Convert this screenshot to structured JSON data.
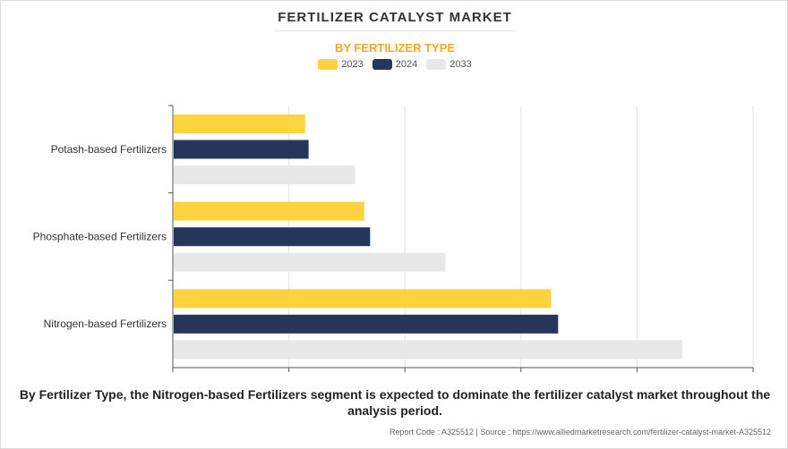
{
  "chart_data": {
    "type": "bar",
    "orientation": "horizontal",
    "title": "FERTILIZER CATALYST MARKET",
    "subtitle": "BY FERTILIZER TYPE",
    "categories": [
      "Potash-based Fertilizers",
      "Phosphate-based Fertilizers",
      "Nitrogen-based Fertilizers"
    ],
    "series": [
      {
        "name": "2023",
        "color": "#ffd23f",
        "values": [
          1.14,
          1.65,
          3.26
        ]
      },
      {
        "name": "2024",
        "color": "#26365a",
        "values": [
          1.17,
          1.7,
          3.32
        ]
      },
      {
        "name": "2033",
        "color": "#e8e8e8",
        "values": [
          1.57,
          2.35,
          4.39
        ]
      }
    ],
    "xlim": [
      0,
      5
    ],
    "grid": true,
    "legend": "top-center",
    "xlabel": "",
    "ylabel": ""
  },
  "caption": "By Fertilizer Type, the Nitrogen-based Fertilizers segment is expected to dominate the fertilizer catalyst market throughout the analysis period.",
  "footer": "Report Code : A325512  |  Source : https://www.alliedmarketresearch.com/fertilizer-catalyst-market-A325512"
}
